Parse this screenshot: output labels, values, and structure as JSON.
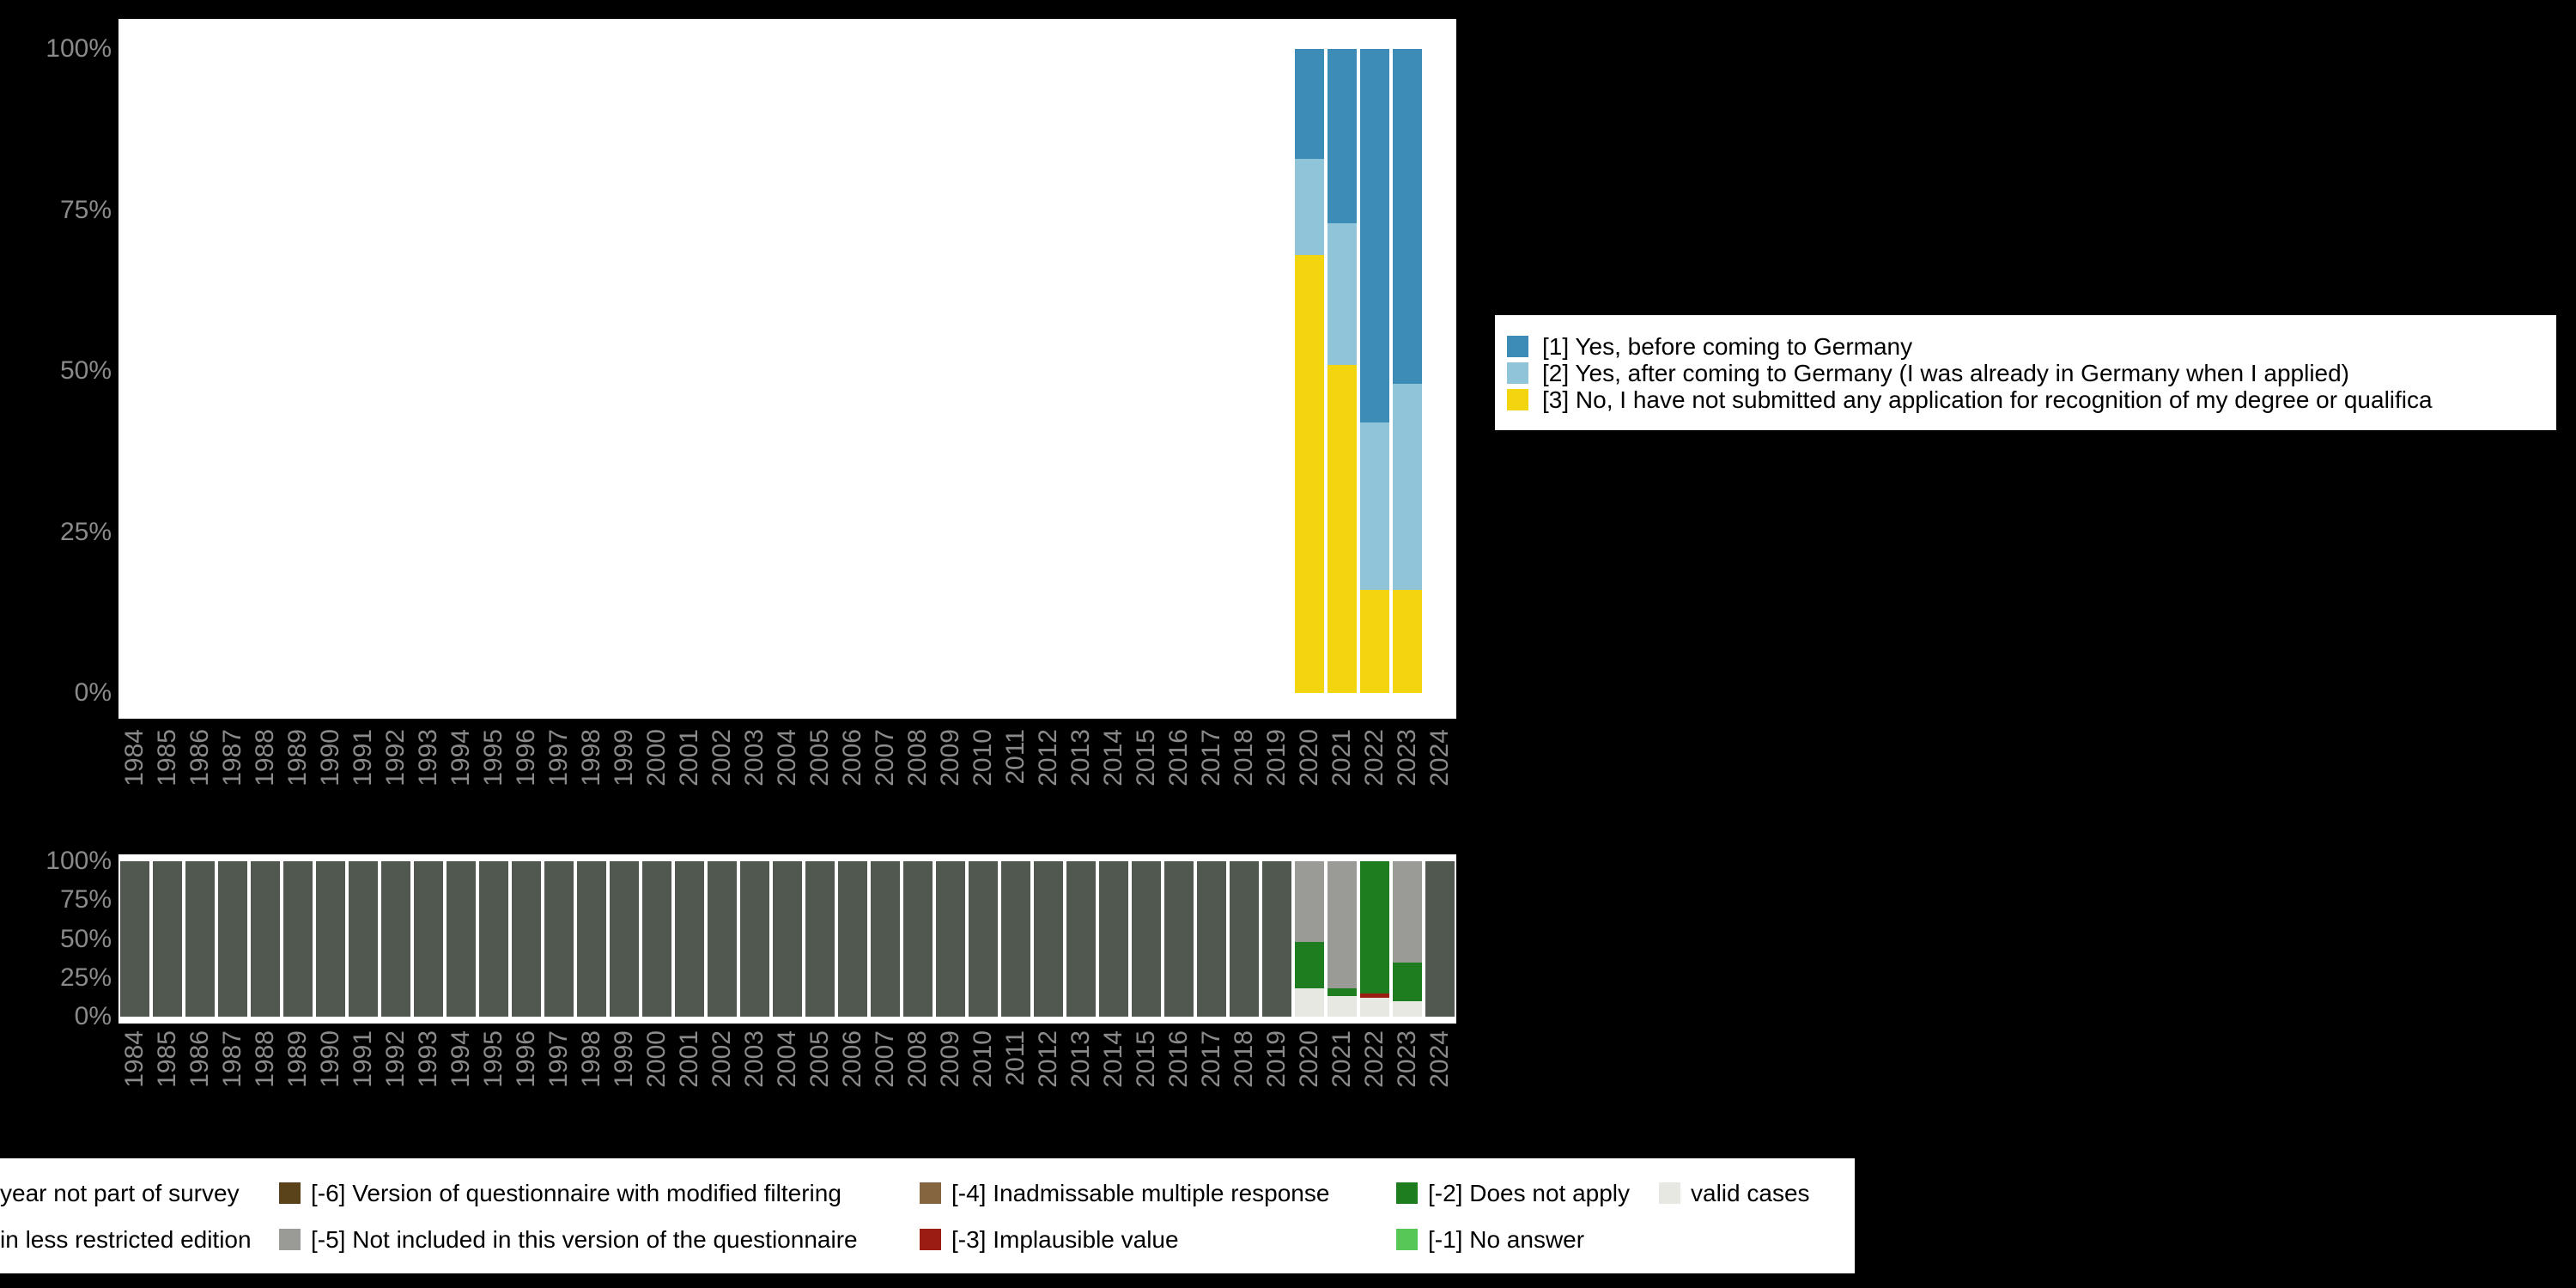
{
  "background_color": "#000000",
  "panel_color": "#ffffff",
  "axis_text_color": "#8a8a8a",
  "chart_data": [
    {
      "id": "top-chart",
      "type": "bar",
      "stacked": true,
      "title": "",
      "xlabel": "",
      "ylabel": "",
      "unit": "percent",
      "ylim": [
        0,
        100
      ],
      "grid": false,
      "legend_position": "right",
      "categories": [
        1984,
        1985,
        1986,
        1987,
        1988,
        1989,
        1990,
        1991,
        1992,
        1993,
        1994,
        1995,
        1996,
        1997,
        1998,
        1999,
        2000,
        2001,
        2002,
        2003,
        2004,
        2005,
        2006,
        2007,
        2008,
        2009,
        2010,
        2011,
        2012,
        2013,
        2014,
        2015,
        2016,
        2017,
        2018,
        2019,
        2020,
        2021,
        2022,
        2023,
        2024
      ],
      "y_ticks": [
        "0%",
        "25%",
        "50%",
        "75%",
        "100%"
      ],
      "series": [
        {
          "name": "[3] No, I have not submitted any application for recognition of my degree or qualifica",
          "color": "#f2d50f",
          "values": [
            0,
            0,
            0,
            0,
            0,
            0,
            0,
            0,
            0,
            0,
            0,
            0,
            0,
            0,
            0,
            0,
            0,
            0,
            0,
            0,
            0,
            0,
            0,
            0,
            0,
            0,
            0,
            0,
            0,
            0,
            0,
            0,
            0,
            0,
            0,
            0,
            68,
            51,
            16,
            16,
            0
          ]
        },
        {
          "name": "[2] Yes, after coming to Germany (I was already in Germany when I applied)",
          "color": "#8fc4d9",
          "values": [
            0,
            0,
            0,
            0,
            0,
            0,
            0,
            0,
            0,
            0,
            0,
            0,
            0,
            0,
            0,
            0,
            0,
            0,
            0,
            0,
            0,
            0,
            0,
            0,
            0,
            0,
            0,
            0,
            0,
            0,
            0,
            0,
            0,
            0,
            0,
            0,
            15,
            22,
            26,
            32,
            0
          ]
        },
        {
          "name": "[1] Yes, before coming to Germany",
          "color": "#3d8cb8",
          "values": [
            0,
            0,
            0,
            0,
            0,
            0,
            0,
            0,
            0,
            0,
            0,
            0,
            0,
            0,
            0,
            0,
            0,
            0,
            0,
            0,
            0,
            0,
            0,
            0,
            0,
            0,
            0,
            0,
            0,
            0,
            0,
            0,
            0,
            0,
            0,
            0,
            17,
            27,
            58,
            52,
            0
          ]
        }
      ]
    },
    {
      "id": "bottom-chart",
      "type": "bar",
      "stacked": true,
      "title": "",
      "xlabel": "",
      "ylabel": "",
      "unit": "percent",
      "ylim": [
        0,
        100
      ],
      "grid": false,
      "legend_position": "bottom",
      "categories": [
        1984,
        1985,
        1986,
        1987,
        1988,
        1989,
        1990,
        1991,
        1992,
        1993,
        1994,
        1995,
        1996,
        1997,
        1998,
        1999,
        2000,
        2001,
        2002,
        2003,
        2004,
        2005,
        2006,
        2007,
        2008,
        2009,
        2010,
        2011,
        2012,
        2013,
        2014,
        2015,
        2016,
        2017,
        2018,
        2019,
        2020,
        2021,
        2022,
        2023,
        2024
      ],
      "y_ticks": [
        "0%",
        "25%",
        "50%",
        "75%",
        "100%"
      ],
      "series": [
        {
          "name": "valid cases",
          "color": "#e8e8e2",
          "values": [
            0,
            0,
            0,
            0,
            0,
            0,
            0,
            0,
            0,
            0,
            0,
            0,
            0,
            0,
            0,
            0,
            0,
            0,
            0,
            0,
            0,
            0,
            0,
            0,
            0,
            0,
            0,
            0,
            0,
            0,
            0,
            0,
            0,
            0,
            0,
            0,
            18,
            13,
            12,
            10,
            0
          ]
        },
        {
          "name": "[-3] Implausible value",
          "color": "#9b1c13",
          "values": [
            0,
            0,
            0,
            0,
            0,
            0,
            0,
            0,
            0,
            0,
            0,
            0,
            0,
            0,
            0,
            0,
            0,
            0,
            0,
            0,
            0,
            0,
            0,
            0,
            0,
            0,
            0,
            0,
            0,
            0,
            0,
            0,
            0,
            0,
            0,
            0,
            0,
            0,
            3,
            0,
            0
          ]
        },
        {
          "name": "[-2] Does not apply",
          "color": "#1e7d1e",
          "values": [
            0,
            0,
            0,
            0,
            0,
            0,
            0,
            0,
            0,
            0,
            0,
            0,
            0,
            0,
            0,
            0,
            0,
            0,
            0,
            0,
            0,
            0,
            0,
            0,
            0,
            0,
            0,
            0,
            0,
            0,
            0,
            0,
            0,
            0,
            0,
            0,
            30,
            5,
            85,
            25,
            0
          ]
        },
        {
          "name": "[-5] Not included in this version of the questionnaire",
          "color": "#9a9a96",
          "values": [
            0,
            0,
            0,
            0,
            0,
            0,
            0,
            0,
            0,
            0,
            0,
            0,
            0,
            0,
            0,
            0,
            0,
            0,
            0,
            0,
            0,
            0,
            0,
            0,
            0,
            0,
            0,
            0,
            0,
            0,
            0,
            0,
            0,
            0,
            0,
            0,
            52,
            82,
            0,
            65,
            0
          ]
        },
        {
          "name": "year not part of survey",
          "color": "#51584f",
          "values": [
            100,
            100,
            100,
            100,
            100,
            100,
            100,
            100,
            100,
            100,
            100,
            100,
            100,
            100,
            100,
            100,
            100,
            100,
            100,
            100,
            100,
            100,
            100,
            100,
            100,
            100,
            100,
            100,
            100,
            100,
            100,
            100,
            100,
            100,
            100,
            100,
            0,
            0,
            0,
            0,
            100
          ]
        }
      ]
    }
  ],
  "legend_top": {
    "items": [
      {
        "label": "[1] Yes, before coming to Germany",
        "color": "#3d8cb8"
      },
      {
        "label": "[2] Yes, after coming to Germany (I was already in Germany when I applied)",
        "color": "#8fc4d9"
      },
      {
        "label": "[3] No, I have not submitted any application for recognition of my degree or qualifica",
        "color": "#f2d50f"
      }
    ]
  },
  "legend_bottom": {
    "rows": [
      [
        {
          "label": "year not part of survey",
          "swatch": false
        },
        {
          "label": "[-6] Version of questionnaire with modified filtering",
          "color": "#5a431a"
        },
        {
          "label": "[-4] Inadmissable multiple response",
          "color": "#84653f"
        },
        {
          "label": "[-2] Does not apply",
          "color": "#1e7d1e"
        },
        {
          "label": "valid cases",
          "color": "#e8e8e2"
        }
      ],
      [
        {
          "label": "in less restricted edition",
          "swatch": false
        },
        {
          "label": "[-5] Not included in this version of the questionnaire",
          "color": "#9a9a96"
        },
        {
          "label": "[-3] Implausible value",
          "color": "#9b1c13"
        },
        {
          "label": "[-1] No answer",
          "color": "#57c757"
        }
      ]
    ]
  }
}
